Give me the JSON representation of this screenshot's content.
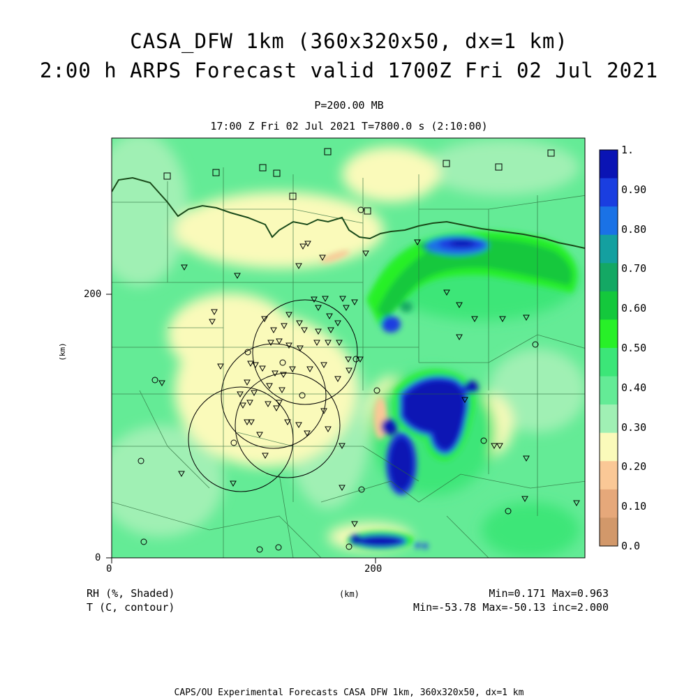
{
  "title_line1": "CASA_DFW 1km (360x320x50, dx=1 km)",
  "title_line2": "2:00 h ARPS Forecast valid 1700Z Fri 02 Jul 2021",
  "level": "P=200.00 MB",
  "valid_time": "17:00 Z Fri 02 Jul 2021    T=7800.0 s (2:10:00)",
  "axes": {
    "x_ticks": [
      "0",
      "200"
    ],
    "y_ticks": [
      "0",
      "200"
    ],
    "xlabel": "(km)",
    "ylabel": "(km)"
  },
  "colorbar": {
    "labels": [
      "1.",
      "0.90",
      "0.80",
      "0.70",
      "0.60",
      "0.50",
      "0.40",
      "0.30",
      "0.20",
      "0.10",
      "0.0"
    ],
    "colors": [
      "#0a14b4",
      "#1a3ee0",
      "#1a72e6",
      "#14a0a0",
      "#14a864",
      "#14c83c",
      "#28f028",
      "#3ce678",
      "#64eb96",
      "#a0f0b4",
      "#fafaba",
      "#fac896",
      "#e6a87a",
      "#d2986a"
    ]
  },
  "legend": {
    "field1": "RH (%, Shaded)",
    "field2": "T (C, contour)",
    "stats1": "Min=0.171 Max=0.963",
    "stats2": "Min=-53.78 Max=-50.13 inc=2.000"
  },
  "footer": "CAPS/OU Experimental Forecasts  CASA DFW 1km, 360x320x50, dx=1 km"
}
